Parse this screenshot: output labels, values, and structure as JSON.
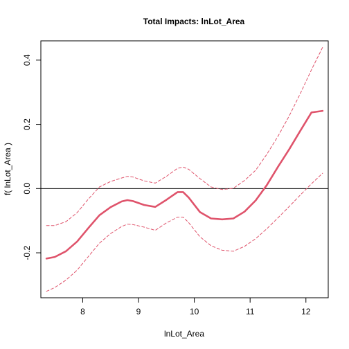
{
  "chart_data": {
    "type": "line",
    "title": "Total Impacts:  lnLot_Area",
    "xlabel": "lnLot_Area",
    "ylabel": "f( lnLot_Area )",
    "xlim": [
      7.25,
      12.4
    ],
    "ylim": [
      -0.34,
      0.46
    ],
    "xticks": [
      8,
      9,
      10,
      11,
      12
    ],
    "yticks": [
      -0.2,
      0.0,
      0.2,
      0.4
    ],
    "xtick_labels": [
      "8",
      "9",
      "10",
      "11",
      "12"
    ],
    "ytick_labels": [
      "-0.2",
      "0.0",
      "0.2",
      "0.4"
    ],
    "hline": 0.0,
    "grid": false,
    "colors": {
      "estimate": "#DF536B",
      "band": "#DF536B",
      "reference": "#000000",
      "frame": "#000000"
    },
    "series": [
      {
        "role": "estimate",
        "style": "solid",
        "x": [
          7.35,
          7.5,
          7.7,
          7.9,
          8.1,
          8.3,
          8.5,
          8.7,
          8.8,
          8.9,
          9.1,
          9.3,
          9.5,
          9.7,
          9.8,
          9.9,
          10.1,
          10.3,
          10.5,
          10.7,
          10.9,
          11.1,
          11.3,
          11.5,
          11.7,
          11.9,
          12.1,
          12.3
        ],
        "y": [
          -0.218,
          -0.213,
          -0.195,
          -0.165,
          -0.123,
          -0.083,
          -0.058,
          -0.04,
          -0.036,
          -0.039,
          -0.051,
          -0.057,
          -0.035,
          -0.011,
          -0.011,
          -0.028,
          -0.073,
          -0.093,
          -0.096,
          -0.093,
          -0.072,
          -0.037,
          0.011,
          0.068,
          0.122,
          0.18,
          0.237,
          0.242
        ]
      },
      {
        "role": "upper",
        "style": "dashed",
        "x": [
          7.35,
          7.5,
          7.7,
          7.9,
          8.1,
          8.3,
          8.5,
          8.7,
          8.8,
          8.9,
          9.1,
          9.3,
          9.5,
          9.7,
          9.8,
          9.9,
          10.1,
          10.3,
          10.5,
          10.7,
          10.9,
          11.1,
          11.3,
          11.5,
          11.7,
          11.9,
          12.1,
          12.3
        ],
        "y": [
          -0.115,
          -0.115,
          -0.103,
          -0.075,
          -0.033,
          0.005,
          0.022,
          0.033,
          0.038,
          0.036,
          0.024,
          0.017,
          0.038,
          0.063,
          0.067,
          0.06,
          0.031,
          0.005,
          -0.003,
          0.001,
          0.025,
          0.057,
          0.107,
          0.163,
          0.226,
          0.296,
          0.37,
          0.44
        ]
      },
      {
        "role": "lower",
        "style": "dashed",
        "x": [
          7.35,
          7.5,
          7.7,
          7.9,
          8.1,
          8.3,
          8.5,
          8.7,
          8.8,
          8.9,
          9.1,
          9.3,
          9.5,
          9.7,
          9.8,
          9.9,
          10.1,
          10.3,
          10.5,
          10.7,
          10.9,
          11.1,
          11.3,
          11.5,
          11.7,
          11.9,
          12.1,
          12.3
        ],
        "y": [
          -0.32,
          -0.308,
          -0.285,
          -0.254,
          -0.212,
          -0.17,
          -0.14,
          -0.118,
          -0.111,
          -0.112,
          -0.12,
          -0.13,
          -0.107,
          -0.089,
          -0.089,
          -0.106,
          -0.15,
          -0.178,
          -0.192,
          -0.195,
          -0.18,
          -0.156,
          -0.125,
          -0.091,
          -0.056,
          -0.02,
          0.015,
          0.048
        ]
      }
    ]
  }
}
